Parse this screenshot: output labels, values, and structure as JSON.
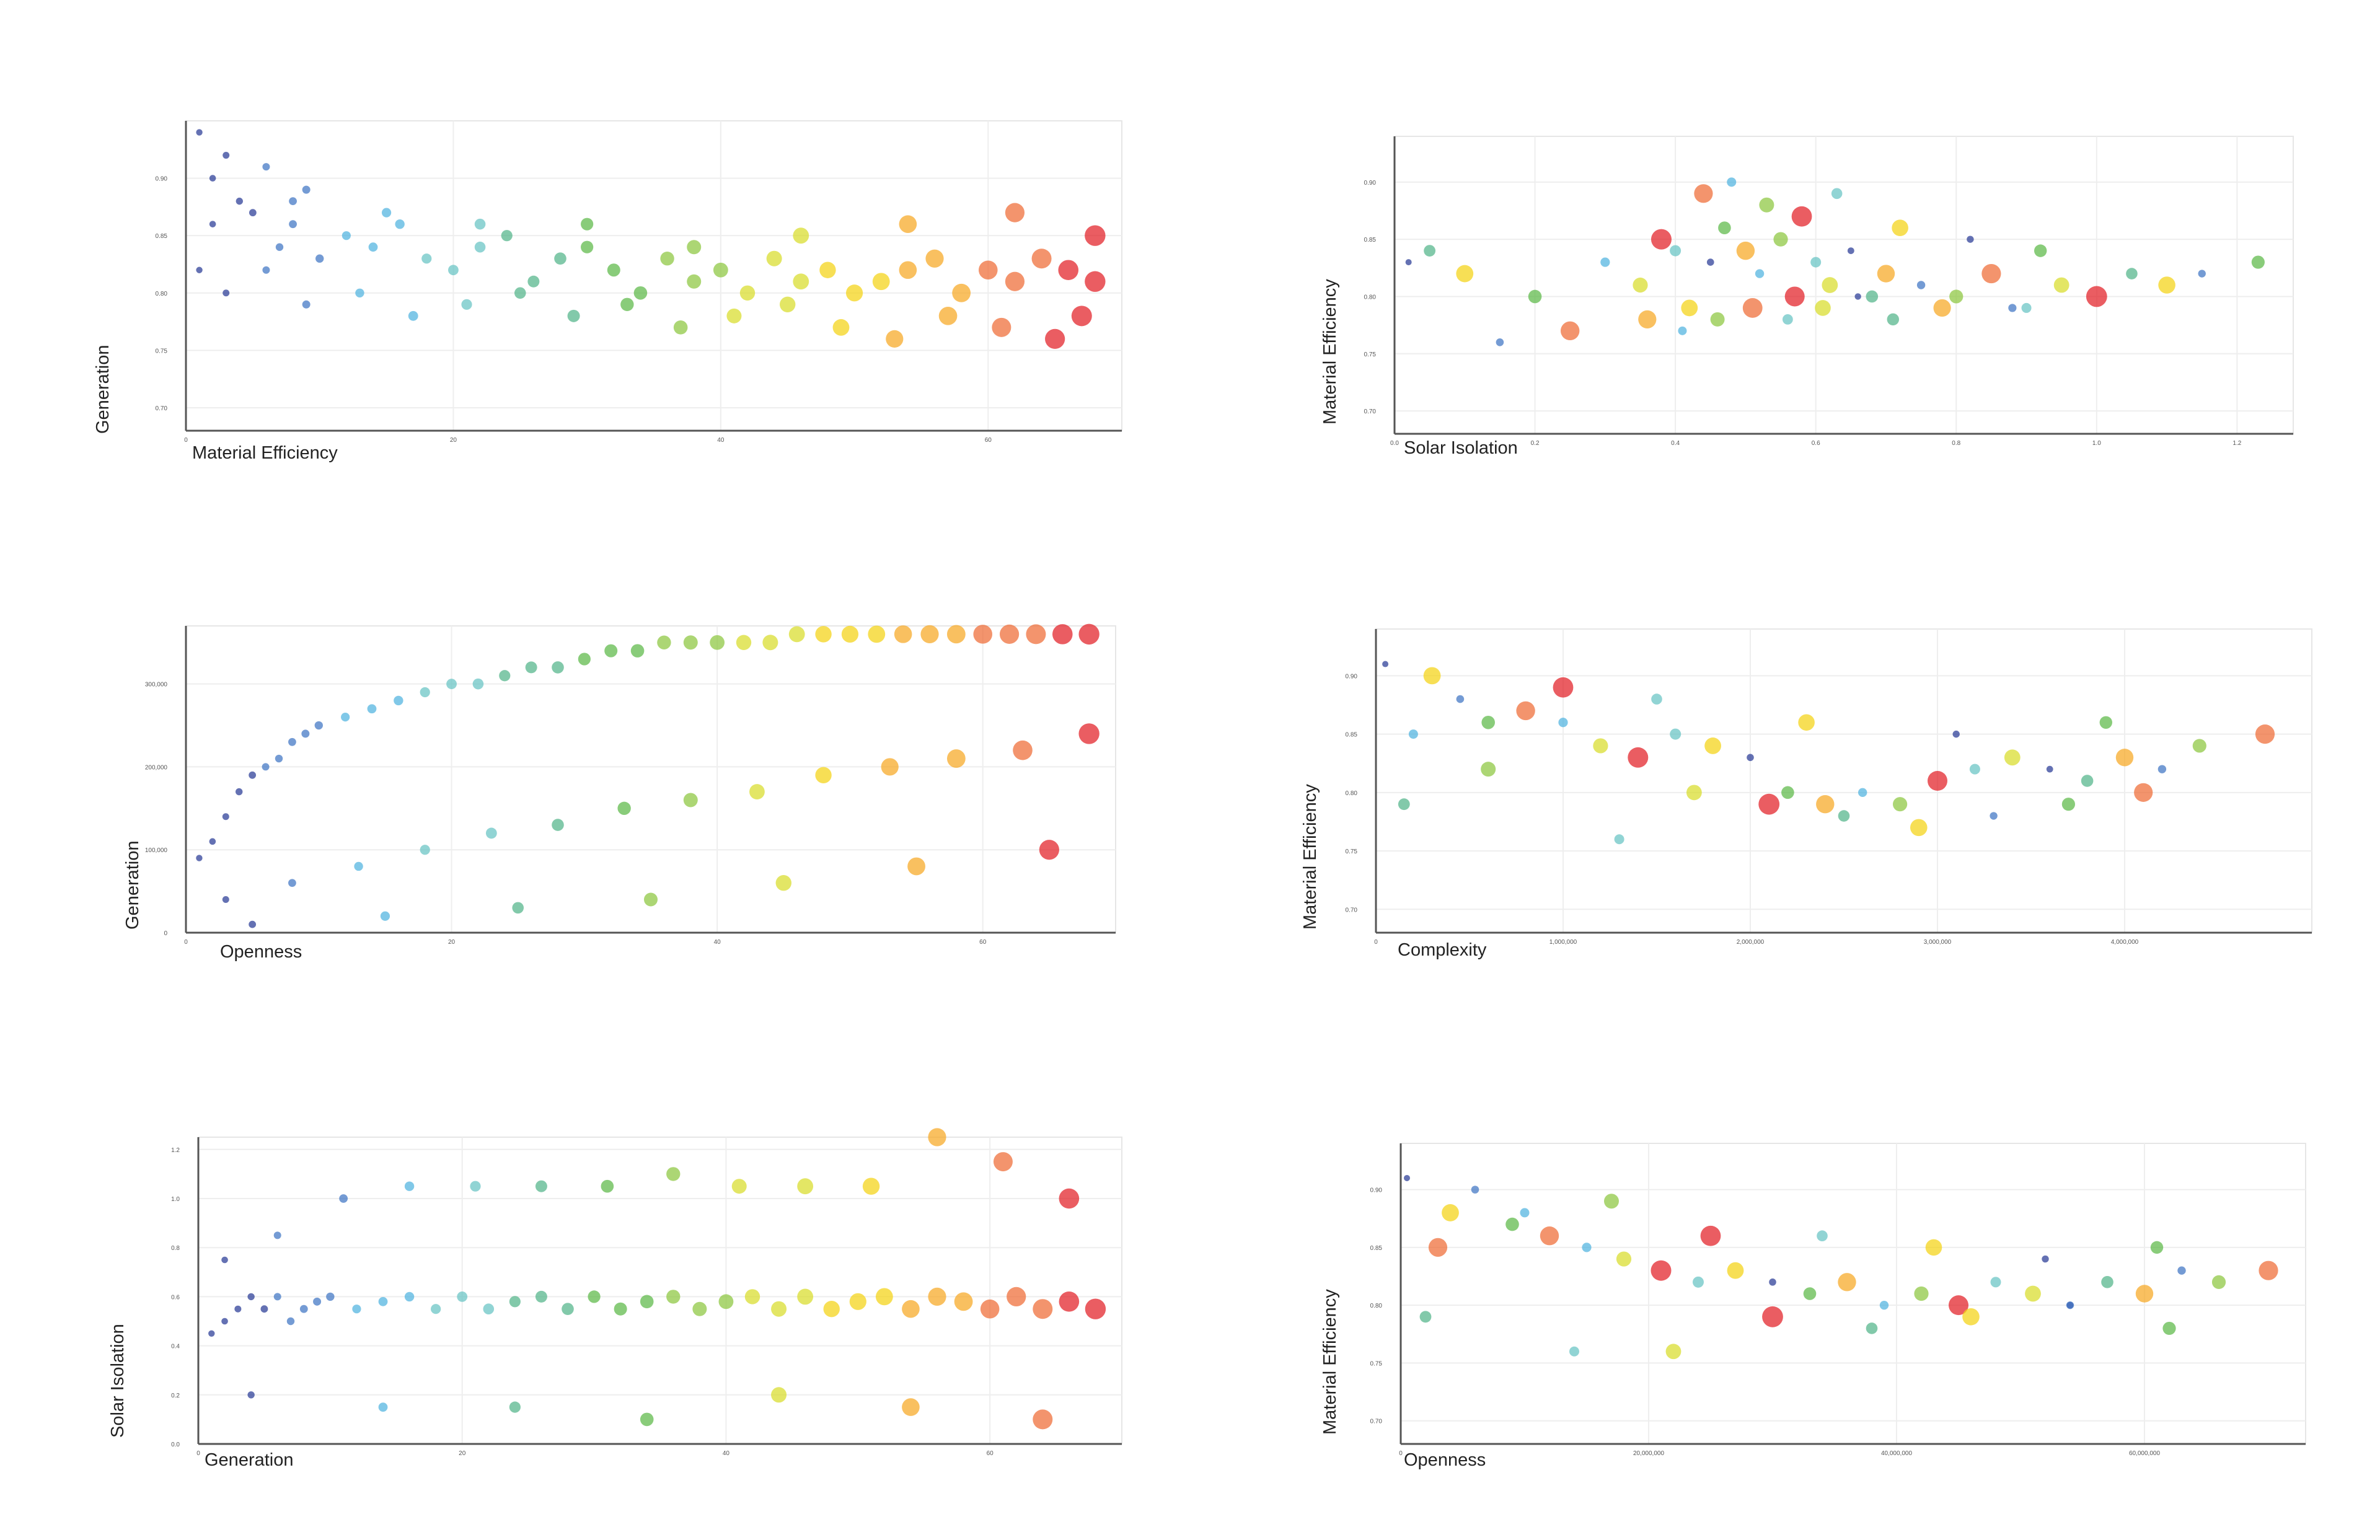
{
  "colors": {
    "ramp": [
      "#283a96",
      "#3f74c4",
      "#4fb3df",
      "#66c4c4",
      "#52b489",
      "#5cb846",
      "#8cc63f",
      "#d8dc2a",
      "#f4d313",
      "#f6a823",
      "#ef6b35",
      "#e21e26"
    ]
  },
  "chart_data": [
    {
      "type": "scatter",
      "xlabel": "Material Efficiency",
      "ylabel": "Generation",
      "xlim": [
        0,
        70
      ],
      "ylim": [
        0.68,
        0.95
      ],
      "xticks": [
        "0",
        "20",
        "40",
        "60"
      ],
      "xtick_values": [
        0,
        20,
        40,
        60
      ],
      "yticks": [
        "0.70",
        "0.75",
        "0.80",
        "0.85",
        "0.90"
      ],
      "ytick_values": [
        0.7,
        0.75,
        0.8,
        0.85,
        0.9
      ],
      "x": [
        1,
        2,
        3,
        4,
        5,
        6,
        7,
        8,
        9,
        10,
        12,
        14,
        16,
        18,
        20,
        22,
        24,
        26,
        28,
        30,
        32,
        34,
        36,
        38,
        40,
        42,
        44,
        46,
        48,
        50,
        52,
        54,
        56,
        58,
        60,
        62,
        64,
        66,
        68,
        1,
        3,
        6,
        9,
        13,
        17,
        21,
        25,
        29,
        33,
        37,
        41,
        45,
        49,
        53,
        57,
        61,
        65,
        67,
        2,
        8,
        15,
        22,
        30,
        38,
        46,
        54,
        62,
        68
      ],
      "y": [
        0.94,
        0.9,
        0.92,
        0.88,
        0.87,
        0.91,
        0.84,
        0.86,
        0.89,
        0.83,
        0.85,
        0.84,
        0.86,
        0.83,
        0.82,
        0.84,
        0.85,
        0.81,
        0.83,
        0.84,
        0.82,
        0.8,
        0.83,
        0.81,
        0.82,
        0.8,
        0.83,
        0.81,
        0.82,
        0.8,
        0.81,
        0.82,
        0.83,
        0.8,
        0.82,
        0.81,
        0.83,
        0.82,
        0.81,
        0.82,
        0.8,
        0.82,
        0.79,
        0.8,
        0.78,
        0.79,
        0.8,
        0.78,
        0.79,
        0.77,
        0.78,
        0.79,
        0.77,
        0.76,
        0.78,
        0.77,
        0.76,
        0.78,
        0.86,
        0.88,
        0.87,
        0.86,
        0.86,
        0.84,
        0.85,
        0.86,
        0.87,
        0.85
      ]
    },
    {
      "type": "scatter",
      "xlabel": "Solar Isolation",
      "ylabel": "Material Efficiency",
      "xlim": [
        0,
        1.28
      ],
      "ylim": [
        0.68,
        0.94
      ],
      "xticks": [
        "0.0",
        "0.2",
        "0.4",
        "0.6",
        "0.8",
        "1.0",
        "1.2"
      ],
      "xtick_values": [
        0,
        0.2,
        0.4,
        0.6,
        0.8,
        1.0,
        1.2
      ],
      "yticks": [
        "0.70",
        "0.75",
        "0.80",
        "0.85",
        "0.90"
      ],
      "ytick_values": [
        0.7,
        0.75,
        0.8,
        0.85,
        0.9
      ],
      "x": [
        0.02,
        0.05,
        0.1,
        0.15,
        0.2,
        0.25,
        0.3,
        0.35,
        0.38,
        0.4,
        0.42,
        0.45,
        0.47,
        0.5,
        0.52,
        0.55,
        0.57,
        0.6,
        0.62,
        0.65,
        0.68,
        0.7,
        0.75,
        0.8,
        0.85,
        0.9,
        0.95,
        1.0,
        1.05,
        1.1,
        1.15,
        1.23,
        0.44,
        0.48,
        0.53,
        0.58,
        0.63,
        0.72,
        0.82,
        0.92,
        0.36,
        0.41,
        0.46,
        0.51,
        0.56,
        0.61,
        0.66,
        0.71,
        0.78,
        0.88
      ],
      "y": [
        0.83,
        0.84,
        0.82,
        0.76,
        0.8,
        0.77,
        0.83,
        0.81,
        0.85,
        0.84,
        0.79,
        0.83,
        0.86,
        0.84,
        0.82,
        0.85,
        0.8,
        0.83,
        0.81,
        0.84,
        0.8,
        0.82,
        0.81,
        0.8,
        0.82,
        0.79,
        0.81,
        0.8,
        0.82,
        0.81,
        0.82,
        0.83,
        0.89,
        0.9,
        0.88,
        0.87,
        0.89,
        0.86,
        0.85,
        0.84,
        0.78,
        0.77,
        0.78,
        0.79,
        0.78,
        0.79,
        0.8,
        0.78,
        0.79,
        0.79
      ]
    },
    {
      "type": "scatter",
      "xlabel": "Openness",
      "ylabel": "Generation",
      "xlim": [
        0,
        70
      ],
      "ylim": [
        0,
        370000
      ],
      "xticks": [
        "0",
        "20",
        "40",
        "60"
      ],
      "xtick_values": [
        0,
        20,
        40,
        60
      ],
      "yticks": [
        "0",
        "100,000",
        "200,000",
        "300,000"
      ],
      "ytick_values": [
        0,
        100000,
        200000,
        300000
      ],
      "x": [
        1,
        2,
        3,
        4,
        5,
        6,
        7,
        8,
        9,
        10,
        12,
        14,
        16,
        18,
        20,
        22,
        24,
        26,
        28,
        30,
        32,
        34,
        36,
        38,
        40,
        42,
        44,
        46,
        48,
        50,
        52,
        54,
        56,
        58,
        60,
        62,
        64,
        66,
        68,
        3,
        8,
        13,
        18,
        23,
        28,
        33,
        38,
        43,
        48,
        53,
        58,
        63,
        68,
        5,
        15,
        25,
        35,
        45,
        55,
        65
      ],
      "y": [
        90000,
        110000,
        140000,
        170000,
        190000,
        200000,
        210000,
        230000,
        240000,
        250000,
        260000,
        270000,
        280000,
        290000,
        300000,
        300000,
        310000,
        320000,
        320000,
        330000,
        340000,
        340000,
        350000,
        350000,
        350000,
        350000,
        350000,
        360000,
        360000,
        360000,
        360000,
        360000,
        360000,
        360000,
        360000,
        360000,
        360000,
        360000,
        360000,
        40000,
        60000,
        80000,
        100000,
        120000,
        130000,
        150000,
        160000,
        170000,
        190000,
        200000,
        210000,
        220000,
        240000,
        10000,
        20000,
        30000,
        40000,
        60000,
        80000,
        100000
      ]
    },
    {
      "type": "scatter",
      "xlabel": "Complexity",
      "ylabel": "Material Efficiency",
      "xlim": [
        0,
        5000000
      ],
      "ylim": [
        0.68,
        0.94
      ],
      "xticks": [
        "0",
        "1,000,000",
        "2,000,000",
        "3,000,000",
        "4,000,000"
      ],
      "xtick_values": [
        0,
        1000000,
        2000000,
        3000000,
        4000000
      ],
      "yticks": [
        "0.70",
        "0.75",
        "0.80",
        "0.85",
        "0.90"
      ],
      "ytick_values": [
        0.7,
        0.75,
        0.8,
        0.85,
        0.9
      ],
      "x": [
        50000,
        150000,
        300000,
        450000,
        600000,
        800000,
        1000000,
        1200000,
        1400000,
        1600000,
        1800000,
        2000000,
        2200000,
        2400000,
        2600000,
        2800000,
        3000000,
        3200000,
        3400000,
        3600000,
        3800000,
        4000000,
        4200000,
        4400000,
        4750000,
        1300000,
        1700000,
        2100000,
        2500000,
        2900000,
        3300000,
        3700000,
        4100000,
        200000,
        600000,
        1000000,
        1500000,
        2300000,
        3100000,
        3900000
      ],
      "y": [
        0.91,
        0.79,
        0.9,
        0.88,
        0.86,
        0.87,
        0.86,
        0.84,
        0.83,
        0.85,
        0.84,
        0.83,
        0.8,
        0.79,
        0.8,
        0.79,
        0.81,
        0.82,
        0.83,
        0.82,
        0.81,
        0.83,
        0.82,
        0.84,
        0.85,
        0.76,
        0.8,
        0.79,
        0.78,
        0.77,
        0.78,
        0.79,
        0.8,
        0.85,
        0.82,
        0.89,
        0.88,
        0.86,
        0.85,
        0.86
      ]
    },
    {
      "type": "scatter",
      "xlabel": "Generation",
      "ylabel": "Solar Isolation",
      "xlim": [
        0,
        70
      ],
      "ylim": [
        0,
        1.25
      ],
      "xticks": [
        "0",
        "20",
        "40",
        "60"
      ],
      "xtick_values": [
        0,
        20,
        40,
        60
      ],
      "yticks": [
        "0.0",
        "0.2",
        "0.4",
        "0.6",
        "0.8",
        "1.0",
        "1.2"
      ],
      "ytick_values": [
        0,
        0.2,
        0.4,
        0.6,
        0.8,
        1.0,
        1.2
      ],
      "x": [
        1,
        2,
        3,
        4,
        5,
        6,
        7,
        8,
        9,
        10,
        12,
        14,
        16,
        18,
        20,
        22,
        24,
        26,
        28,
        30,
        32,
        34,
        36,
        38,
        40,
        42,
        44,
        46,
        48,
        50,
        52,
        54,
        56,
        58,
        60,
        62,
        64,
        66,
        68,
        2,
        6,
        11,
        16,
        21,
        26,
        31,
        36,
        41,
        46,
        51,
        56,
        61,
        66,
        4,
        14,
        24,
        34,
        44,
        54,
        64
      ],
      "y": [
        0.45,
        0.5,
        0.55,
        0.6,
        0.55,
        0.6,
        0.5,
        0.55,
        0.58,
        0.6,
        0.55,
        0.58,
        0.6,
        0.55,
        0.6,
        0.55,
        0.58,
        0.6,
        0.55,
        0.6,
        0.55,
        0.58,
        0.6,
        0.55,
        0.58,
        0.6,
        0.55,
        0.6,
        0.55,
        0.58,
        0.6,
        0.55,
        0.6,
        0.58,
        0.55,
        0.6,
        0.55,
        0.58,
        0.55,
        0.75,
        0.85,
        1.0,
        1.05,
        1.05,
        1.05,
        1.05,
        1.1,
        1.05,
        1.05,
        1.05,
        1.25,
        1.15,
        1.0,
        0.2,
        0.15,
        0.15,
        0.1,
        0.2,
        0.15,
        0.1
      ]
    },
    {
      "type": "scatter",
      "xlabel": "Openness",
      "ylabel": "Material Efficiency",
      "xlim": [
        0,
        73000000
      ],
      "ylim": [
        0.68,
        0.94
      ],
      "xticks": [
        "0",
        "20,000,000",
        "40,000,000",
        "60,000,000"
      ],
      "xtick_values": [
        0,
        20000000,
        40000000,
        60000000
      ],
      "yticks": [
        "0.70",
        "0.75",
        "0.80",
        "0.85",
        "0.90"
      ],
      "ytick_values": [
        0.7,
        0.75,
        0.8,
        0.85,
        0.9
      ],
      "x": [
        500000,
        2000000,
        4000000,
        6000000,
        9000000,
        12000000,
        15000000,
        18000000,
        21000000,
        24000000,
        27000000,
        30000000,
        33000000,
        36000000,
        39000000,
        42000000,
        45000000,
        48000000,
        51000000,
        54000000,
        57000000,
        60000000,
        63000000,
        66000000,
        70000000,
        14000000,
        22000000,
        30000000,
        38000000,
        46000000,
        54000000,
        62000000,
        3000000,
        10000000,
        17000000,
        25000000,
        34000000,
        43000000,
        52000000,
        61000000
      ],
      "y": [
        0.91,
        0.79,
        0.88,
        0.9,
        0.87,
        0.86,
        0.85,
        0.84,
        0.83,
        0.82,
        0.83,
        0.82,
        0.81,
        0.82,
        0.8,
        0.81,
        0.8,
        0.82,
        0.81,
        0.8,
        0.82,
        0.81,
        0.83,
        0.82,
        0.83,
        0.76,
        0.76,
        0.79,
        0.78,
        0.79,
        0.8,
        0.78,
        0.85,
        0.88,
        0.89,
        0.86,
        0.86,
        0.85,
        0.84,
        0.85
      ]
    }
  ]
}
